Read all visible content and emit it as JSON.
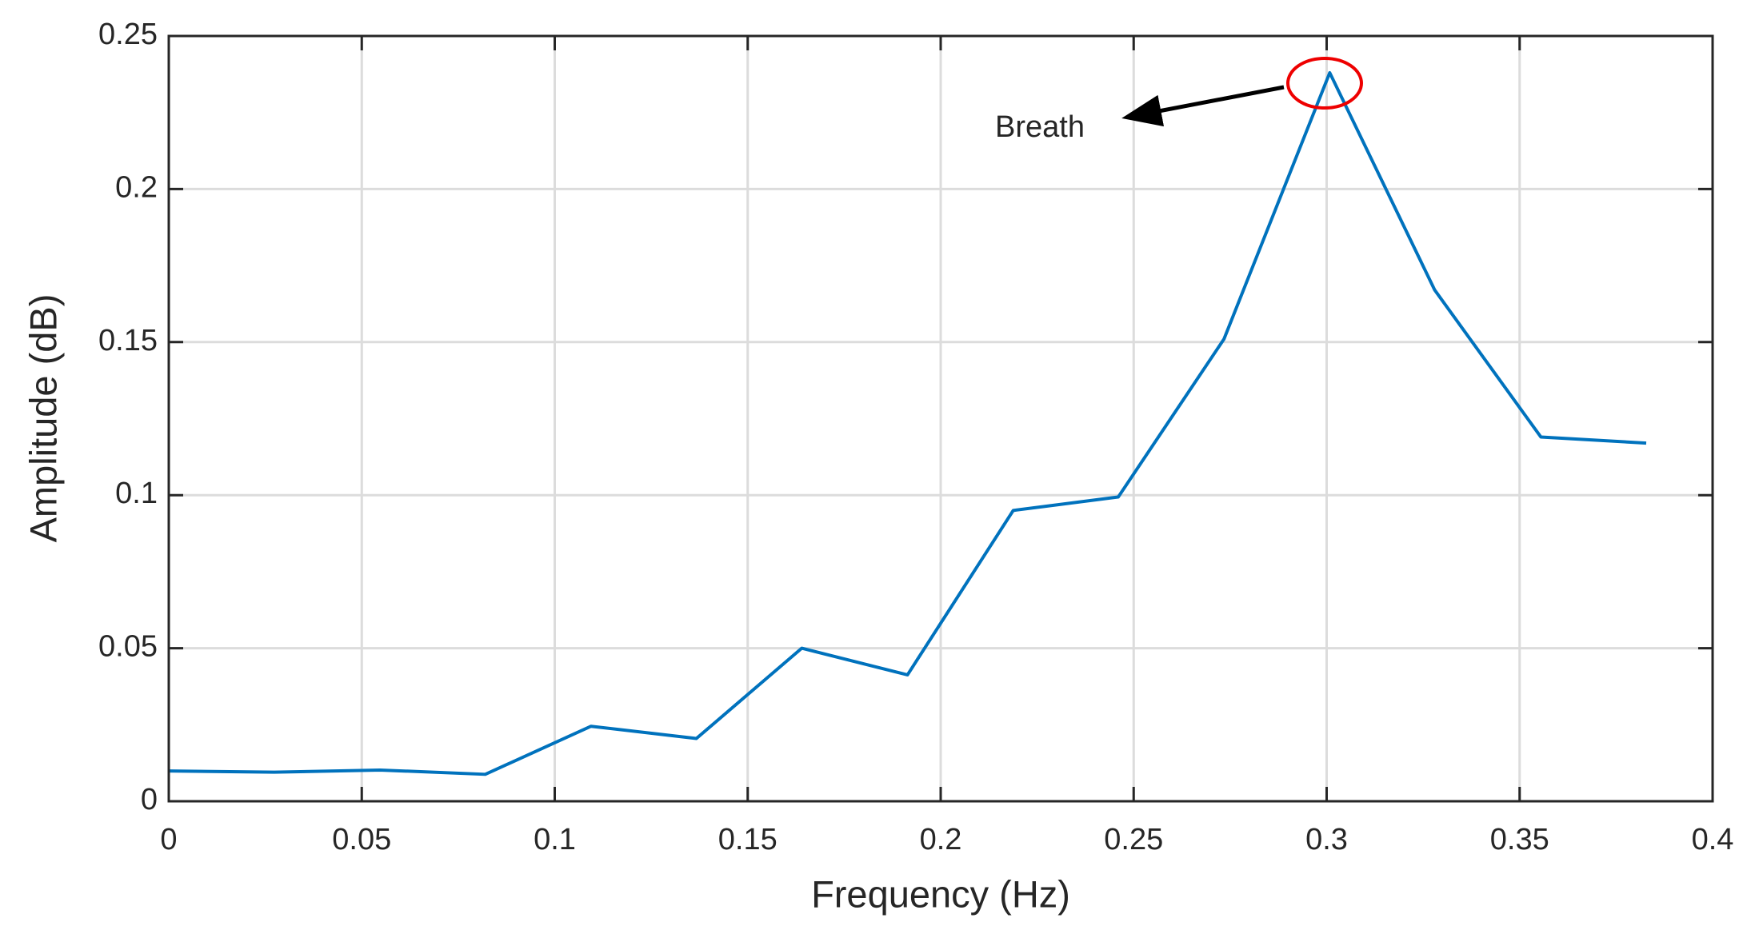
{
  "chart_data": {
    "type": "line",
    "x_label": "Frequency (Hz)",
    "y_label": "Amplitude (dB)",
    "annotation": "Breath",
    "x": [
      0,
      0.0273,
      0.0547,
      0.082,
      0.1094,
      0.1367,
      0.164,
      0.1914,
      0.2188,
      0.246,
      0.2734,
      0.3008,
      0.328,
      0.3555,
      0.3828
    ],
    "series": [
      {
        "color": "#0072bd",
        "values": [
          0.0099,
          0.0095,
          0.0102,
          0.0088,
          0.0245,
          0.0205,
          0.05,
          0.0413,
          0.095,
          0.0994,
          0.151,
          0.238,
          0.167,
          0.119,
          0.117
        ]
      }
    ],
    "xlim": [
      0,
      0.4
    ],
    "xticks": [
      0,
      0.05,
      0.1,
      0.15,
      0.2,
      0.25,
      0.3,
      0.35,
      0.4
    ],
    "ylim": [
      0,
      0.25
    ],
    "yticks": [
      0,
      0.05,
      0.1,
      0.15,
      0.2,
      0.25
    ],
    "grid": true
  }
}
